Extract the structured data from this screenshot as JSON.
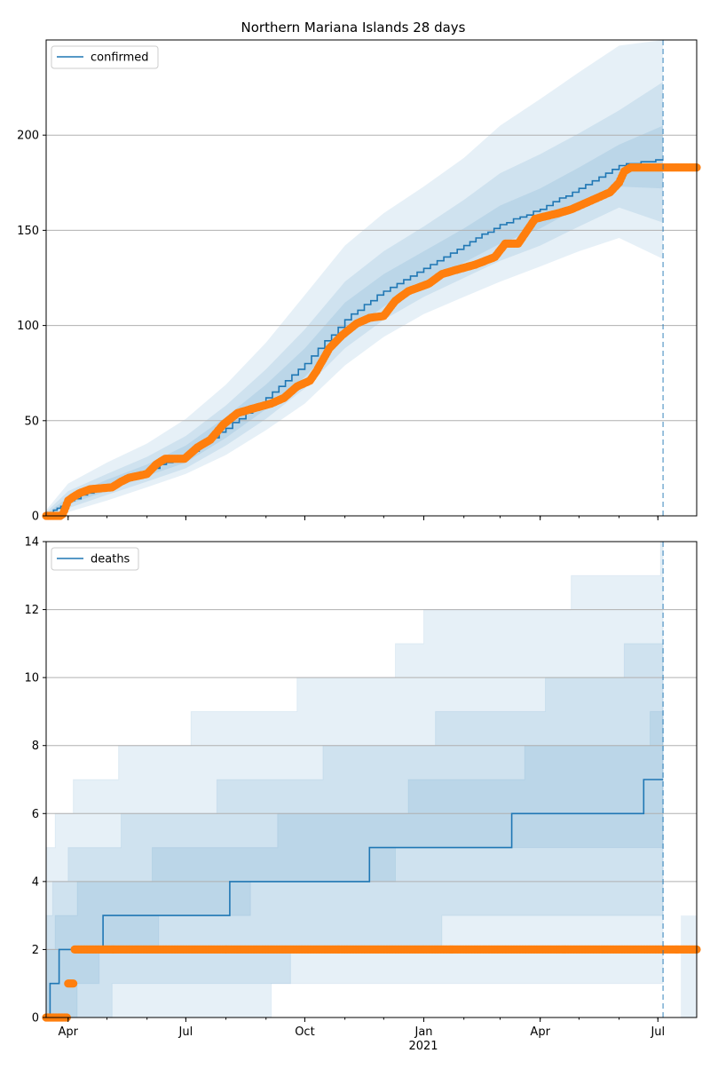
{
  "chart_data": [
    {
      "type": "line",
      "title": "Northern Mariana Islands 28 days",
      "legend": {
        "label": "confirmed",
        "placement": "top-left"
      },
      "ylim": [
        0,
        250
      ],
      "yticks": [
        0,
        50,
        100,
        150,
        200
      ],
      "grid": "horizontal",
      "x_range": [
        "2020-03-15",
        "2021-07-31"
      ],
      "forecast_start": "2021-07-05",
      "colors": {
        "line": "#1f77b4",
        "observed": "#ff7f0e",
        "band": "#1f77b4",
        "vline": "#1f77b4"
      },
      "median": {
        "x": [
          "2020-03-15",
          "2020-04-01",
          "2020-05-01",
          "2020-06-01",
          "2020-07-01",
          "2020-08-01",
          "2020-09-01",
          "2020-10-01",
          "2020-11-01",
          "2020-12-01",
          "2021-01-01",
          "2021-02-01",
          "2021-03-01",
          "2021-04-01",
          "2021-05-01",
          "2021-06-01",
          "2021-07-05"
        ],
        "y": [
          0,
          8,
          16,
          24,
          32,
          46,
          62,
          80,
          103,
          118,
          130,
          142,
          153,
          161,
          172,
          184,
          187
        ]
      },
      "bands": [
        {
          "name": "50%",
          "lower": [
            0,
            6,
            13,
            21,
            28,
            41,
            56,
            73,
            95,
            110,
            122,
            133,
            143,
            151,
            162,
            173,
            172
          ],
          "upper": [
            1,
            10,
            19,
            27,
            37,
            52,
            69,
            88,
            112,
            127,
            139,
            151,
            163,
            172,
            183,
            195,
            205
          ]
        },
        {
          "name": "80%",
          "lower": [
            0,
            4,
            11,
            18,
            25,
            37,
            51,
            67,
            88,
            103,
            115,
            125,
            134,
            142,
            152,
            162,
            154
          ],
          "upper": [
            2,
            13,
            22,
            31,
            42,
            58,
            77,
            98,
            123,
            139,
            152,
            166,
            180,
            190,
            201,
            213,
            228
          ]
        },
        {
          "name": "95%",
          "lower": [
            0,
            2,
            8,
            15,
            22,
            32,
            45,
            59,
            79,
            94,
            106,
            115,
            123,
            131,
            139,
            146,
            135
          ],
          "upper": [
            3,
            17,
            28,
            38,
            51,
            69,
            91,
            116,
            142,
            159,
            173,
            188,
            205,
            219,
            233,
            247,
            250
          ]
        }
      ],
      "observed": {
        "x": [
          "2020-03-15",
          "2020-03-26",
          "2020-03-28",
          "2020-04-01",
          "2020-04-05",
          "2020-04-10",
          "2020-04-18",
          "2020-05-05",
          "2020-05-12",
          "2020-05-18",
          "2020-06-01",
          "2020-06-08",
          "2020-06-15",
          "2020-06-30",
          "2020-07-10",
          "2020-07-20",
          "2020-07-30",
          "2020-08-10",
          "2020-08-20",
          "2020-09-05",
          "2020-09-15",
          "2020-09-25",
          "2020-10-05",
          "2020-10-10",
          "2020-10-20",
          "2020-10-30",
          "2020-11-10",
          "2020-11-20",
          "2020-12-01",
          "2020-12-10",
          "2020-12-20",
          "2021-01-05",
          "2021-01-15",
          "2021-01-25",
          "2021-02-10",
          "2021-02-25",
          "2021-03-05",
          "2021-03-15",
          "2021-03-28",
          "2021-04-15",
          "2021-04-25",
          "2021-05-05",
          "2021-05-15",
          "2021-05-25",
          "2021-06-01",
          "2021-06-05",
          "2021-06-10",
          "2021-07-31"
        ],
        "y": [
          0,
          0,
          1,
          8,
          10,
          12,
          14,
          15,
          18,
          20,
          22,
          27,
          30,
          30,
          36,
          40,
          48,
          54,
          56,
          59,
          62,
          68,
          71,
          76,
          88,
          95,
          101,
          104,
          105,
          113,
          118,
          122,
          127,
          129,
          132,
          136,
          143,
          143,
          156,
          159,
          161,
          164,
          167,
          170,
          175,
          181,
          183,
          183
        ]
      },
      "xticks": [
        {
          "date": "2020-04-01",
          "label": "Apr"
        },
        {
          "date": "2020-07-01",
          "label": "Jul"
        },
        {
          "date": "2020-10-01",
          "label": "Oct"
        },
        {
          "date": "2021-01-01",
          "label": "Jan"
        },
        {
          "date": "2021-04-01",
          "label": "Apr"
        },
        {
          "date": "2021-07-01",
          "label": "Jul"
        }
      ]
    },
    {
      "type": "line",
      "title": "",
      "legend": {
        "label": "deaths",
        "placement": "top-left"
      },
      "ylim": [
        0,
        14
      ],
      "yticks": [
        0,
        2,
        4,
        6,
        8,
        10,
        12,
        14
      ],
      "grid": "horizontal",
      "x_range": [
        "2020-03-15",
        "2021-07-31"
      ],
      "forecast_start": "2021-07-05",
      "xlabel_year": "2021",
      "median_steps": [
        [
          "2020-03-15",
          0
        ],
        [
          "2020-03-18",
          1
        ],
        [
          "2020-03-25",
          2
        ],
        [
          "2020-04-28",
          3
        ],
        [
          "2020-08-04",
          4
        ],
        [
          "2020-11-20",
          5
        ],
        [
          "2021-03-10",
          6
        ],
        [
          "2021-06-20",
          7
        ],
        [
          "2021-07-05",
          7
        ]
      ],
      "band_steps": [
        {
          "name": "50%",
          "lower": [
            [
              "2020-03-15",
              0
            ],
            [
              "2020-04-08",
              1
            ],
            [
              "2020-04-25",
              2
            ],
            [
              "2020-06-10",
              3
            ],
            [
              "2020-08-20",
              4
            ],
            [
              "2020-12-10",
              5
            ],
            [
              "2021-06-20",
              5
            ],
            [
              "2021-07-05",
              5
            ]
          ],
          "upper": [
            [
              "2020-03-15",
              2
            ],
            [
              "2020-03-22",
              3
            ],
            [
              "2020-04-08",
              4
            ],
            [
              "2020-06-05",
              5
            ],
            [
              "2020-09-10",
              6
            ],
            [
              "2020-12-20",
              7
            ],
            [
              "2021-03-20",
              8
            ],
            [
              "2021-06-25",
              9
            ],
            [
              "2021-07-05",
              9
            ]
          ]
        },
        {
          "name": "80%",
          "lower": [
            [
              "2020-03-15",
              0
            ],
            [
              "2020-05-05",
              1
            ],
            [
              "2020-09-20",
              2
            ],
            [
              "2021-01-15",
              3
            ],
            [
              "2021-07-05",
              3
            ]
          ],
          "upper": [
            [
              "2020-03-15",
              3
            ],
            [
              "2020-03-20",
              4
            ],
            [
              "2020-04-01",
              5
            ],
            [
              "2020-05-12",
              6
            ],
            [
              "2020-07-25",
              7
            ],
            [
              "2020-10-15",
              8
            ],
            [
              "2021-01-10",
              9
            ],
            [
              "2021-04-05",
              10
            ],
            [
              "2021-06-05",
              11
            ],
            [
              "2021-07-05",
              11
            ]
          ]
        },
        {
          "name": "95%",
          "lower": [
            [
              "2020-03-15",
              0
            ],
            [
              "2020-06-01",
              0
            ],
            [
              "2020-09-05",
              1
            ],
            [
              "2021-05-01",
              1
            ],
            [
              "2021-07-05",
              1
            ]
          ],
          "upper": [
            [
              "2020-03-15",
              5
            ],
            [
              "2020-03-22",
              6
            ],
            [
              "2020-04-05",
              7
            ],
            [
              "2020-05-10",
              8
            ],
            [
              "2020-07-05",
              9
            ],
            [
              "2020-09-25",
              10
            ],
            [
              "2020-12-10",
              11
            ],
            [
              "2021-01-01",
              12
            ],
            [
              "2021-04-25",
              13
            ],
            [
              "2021-07-03",
              14
            ],
            [
              "2021-07-05",
              14
            ]
          ]
        }
      ],
      "trailing_band": {
        "from": "2021-07-05",
        "to": "2021-07-31",
        "lower": 0,
        "upper": 3
      },
      "observed": {
        "x": [
          "2020-03-15",
          "2020-03-30",
          "2020-04-01",
          "2020-04-04",
          "2020-04-06",
          "2021-07-31"
        ],
        "y": [
          0,
          0,
          1,
          1,
          2,
          2
        ]
      },
      "xticks": [
        {
          "date": "2020-04-01",
          "label": "Apr"
        },
        {
          "date": "2020-07-01",
          "label": "Jul"
        },
        {
          "date": "2020-10-01",
          "label": "Oct"
        },
        {
          "date": "2021-01-01",
          "label": "Jan"
        },
        {
          "date": "2021-04-01",
          "label": "Apr"
        },
        {
          "date": "2021-07-01",
          "label": "Jul"
        }
      ]
    }
  ]
}
